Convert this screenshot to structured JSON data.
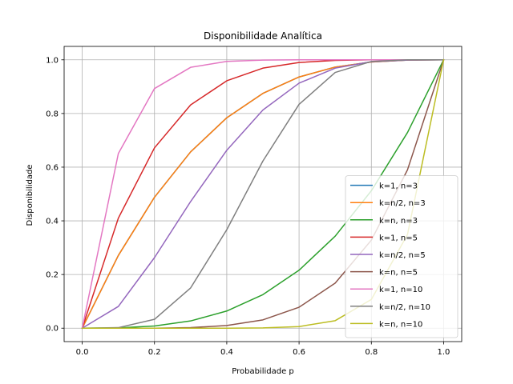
{
  "chart_data": {
    "type": "line",
    "title": "Disponibilidade Analítica",
    "xlabel": "Probabilidade p",
    "ylabel": "Disponibilidade",
    "xlim": [
      -0.05,
      1.05
    ],
    "ylim": [
      -0.05,
      1.05
    ],
    "xticks": [
      0.0,
      0.2,
      0.4,
      0.6,
      0.8,
      1.0
    ],
    "xtick_labels": [
      "0.0",
      "0.2",
      "0.4",
      "0.6",
      "0.8",
      "1.0"
    ],
    "yticks": [
      0.0,
      0.2,
      0.4,
      0.6,
      0.8,
      1.0
    ],
    "ytick_labels": [
      "0.0",
      "0.2",
      "0.4",
      "0.6",
      "0.8",
      "1.0"
    ],
    "grid": true,
    "legend_position": "lower-right",
    "x": [
      0.0,
      0.1,
      0.2,
      0.3,
      0.4,
      0.5,
      0.6,
      0.7,
      0.8,
      0.9,
      1.0
    ],
    "series": [
      {
        "name": "k=1, n=3",
        "color": "#1f77b4",
        "values": [
          0.0,
          0.271,
          0.488,
          0.657,
          0.784,
          0.875,
          0.936,
          0.973,
          0.992,
          0.999,
          1.0
        ]
      },
      {
        "name": "k=n/2, n=3",
        "color": "#ff7f0e",
        "values": [
          0.0,
          0.271,
          0.488,
          0.657,
          0.784,
          0.875,
          0.936,
          0.973,
          0.992,
          0.999,
          1.0
        ]
      },
      {
        "name": "k=n, n=3",
        "color": "#2ca02c",
        "values": [
          0.0,
          0.001,
          0.008,
          0.027,
          0.064,
          0.125,
          0.216,
          0.343,
          0.512,
          0.729,
          1.0
        ]
      },
      {
        "name": "k=1, n=5",
        "color": "#d62728",
        "values": [
          0.0,
          0.41,
          0.672,
          0.832,
          0.922,
          0.969,
          0.99,
          0.998,
          1.0,
          1.0,
          1.0
        ]
      },
      {
        "name": "k=n/2, n=5",
        "color": "#9467bd",
        "values": [
          0.0,
          0.081,
          0.263,
          0.472,
          0.663,
          0.813,
          0.913,
          0.969,
          0.993,
          0.999,
          1.0
        ]
      },
      {
        "name": "k=n, n=5",
        "color": "#8c564b",
        "values": [
          0.0,
          0.0,
          0.0,
          0.002,
          0.01,
          0.031,
          0.078,
          0.168,
          0.328,
          0.59,
          1.0
        ]
      },
      {
        "name": "k=1, n=10",
        "color": "#e377c2",
        "values": [
          0.0,
          0.651,
          0.893,
          0.972,
          0.994,
          0.999,
          1.0,
          1.0,
          1.0,
          1.0,
          1.0
        ]
      },
      {
        "name": "k=n/2, n=10",
        "color": "#7f7f7f",
        "values": [
          0.0,
          0.002,
          0.033,
          0.15,
          0.367,
          0.623,
          0.834,
          0.953,
          0.994,
          1.0,
          1.0
        ]
      },
      {
        "name": "k=n, n=10",
        "color": "#bcbd22",
        "values": [
          0.0,
          0.0,
          0.0,
          0.0,
          0.0,
          0.001,
          0.006,
          0.028,
          0.107,
          0.349,
          1.0
        ]
      }
    ]
  }
}
